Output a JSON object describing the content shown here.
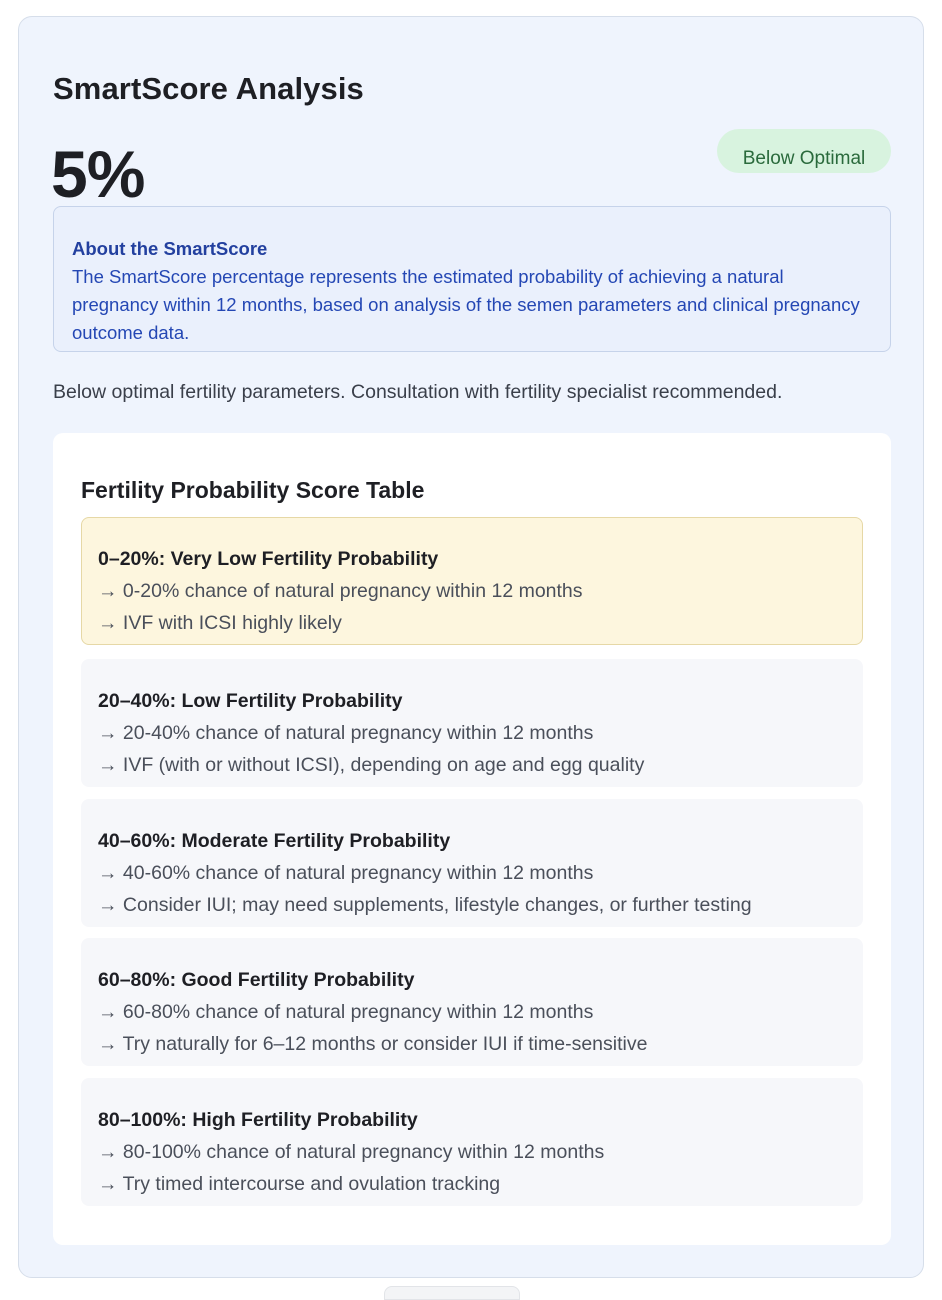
{
  "analysis": {
    "title": "SmartScore Analysis",
    "score": "5%",
    "status": "Below Optimal",
    "about": {
      "title": "About the SmartScore",
      "text": "The SmartScore percentage represents the estimated probability of achieving a natural pregnancy within 12 months, based on analysis of the semen parameters and clinical pregnancy outcome data."
    },
    "summary": "Below optimal fertility parameters. Consultation with fertility specialist recommended."
  },
  "table": {
    "title": "Fertility Probability Score Table",
    "tiers": [
      {
        "heading": "0–20%: Very Low Fertility Probability",
        "line1": "→ 0-20% chance of natural pregnancy within 12 months",
        "line2": "→ IVF with ICSI highly likely"
      },
      {
        "heading": "20–40%: Low Fertility Probability",
        "line1": "→ 20-40% chance of natural pregnancy within 12 months",
        "line2": "→ IVF (with or without ICSI), depending on age and egg quality"
      },
      {
        "heading": "40–60%: Moderate Fertility Probability",
        "line1": "→ 40-60% chance of natural pregnancy within 12 months",
        "line2": "→ Consider IUI; may need supplements, lifestyle changes, or further testing"
      },
      {
        "heading": "60–80%: Good Fertility Probability",
        "line1": "→ 60-80% chance of natural pregnancy within 12 months",
        "line2": "→ Try naturally for 6–12 months or consider IUI if time-sensitive"
      },
      {
        "heading": "80–100%: High Fertility Probability",
        "line1": "→ 80-100% chance of natural pregnancy within 12 months",
        "line2": "→ Try timed intercourse and ovulation tracking"
      }
    ]
  },
  "colors": {
    "card_background": "#eff4fd",
    "badge_background": "#d8f3df",
    "badge_text": "#2a6a3c",
    "about_text": "#2447b4",
    "active_tier_background": "#fdf6de"
  }
}
